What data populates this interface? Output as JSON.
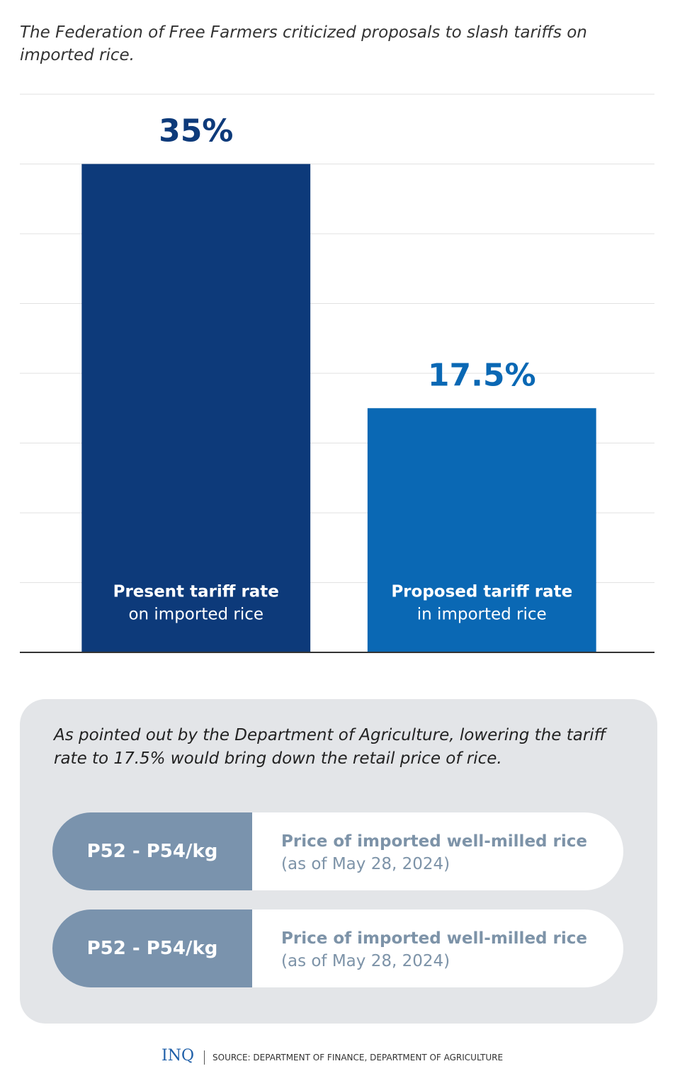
{
  "chart_data": {
    "type": "bar",
    "title": "The Federation of Free Farmers criticized proposals to slash tariffs on imported rice.",
    "categories": [
      "Present tariff rate",
      "Proposed tariff rate"
    ],
    "category_sublabels": [
      "on imported rice",
      "in imported rice"
    ],
    "values": [
      35,
      17.5
    ],
    "value_labels": [
      "35%",
      "17.5%"
    ],
    "colors": [
      "#0d3a7a",
      "#0a68b4"
    ],
    "value_label_colors": [
      "#0d3a7a",
      "#0a68b4"
    ],
    "ylim": [
      0,
      40
    ],
    "yticks": [
      0,
      5,
      10,
      15,
      20,
      25,
      30,
      35,
      40
    ],
    "grid": true
  },
  "note": "As pointed out by the Department of Agriculture, lowering the tariff rate to 17.5% would bring down the retail price of rice.",
  "price_rows": [
    {
      "price": "P52 - P54/kg",
      "label": "Price of imported well-milled rice",
      "date": "(as of May 28, 2024)"
    },
    {
      "price": "P52 - P54/kg",
      "label": "Price of imported well-milled rice",
      "date": "(as of May 28, 2024)"
    }
  ],
  "footer": {
    "logo": "INQ",
    "source": "SOURCE: DEPARTMENT OF FINANCE, DEPARTMENT OF AGRICULTURE"
  }
}
